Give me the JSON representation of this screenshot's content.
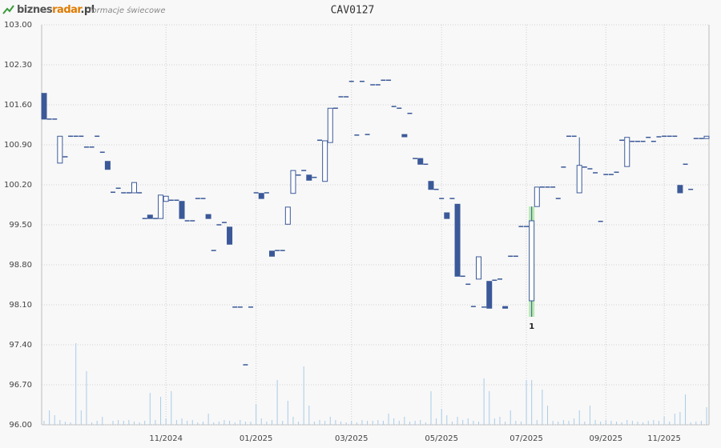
{
  "header": {
    "logo_parts": [
      "biznes",
      "radar",
      ".pl"
    ],
    "subtitle": "formacje świecowe"
  },
  "chart_data": {
    "type": "candlestick",
    "title": "CAV0127",
    "categories": [
      null,
      null,
      null,
      null,
      null,
      null,
      null,
      null,
      null,
      null,
      null,
      null,
      null,
      null,
      null,
      null,
      null,
      null,
      null,
      null,
      null,
      null,
      null,
      "11/2024",
      null,
      null,
      null,
      null,
      null,
      null,
      null,
      null,
      null,
      null,
      null,
      null,
      null,
      null,
      null,
      null,
      "01/2025",
      null,
      null,
      null,
      null,
      null,
      null,
      null,
      null,
      null,
      null,
      null,
      null,
      null,
      null,
      null,
      null,
      null,
      "03/2025",
      null,
      null,
      null,
      null,
      null,
      null,
      null,
      null,
      null,
      null,
      null,
      null,
      null,
      null,
      null,
      null,
      "05/2025",
      null,
      null,
      null,
      null,
      null,
      null,
      null,
      null,
      null,
      null,
      null,
      null,
      null,
      null,
      null,
      "07/2025",
      null,
      null,
      null,
      null,
      null,
      null,
      null,
      null,
      null,
      null,
      null,
      null,
      null,
      null,
      "09/2025",
      null,
      null,
      null,
      null,
      null,
      null,
      null,
      null,
      null,
      null,
      "11/2025",
      null,
      null,
      null,
      null,
      null,
      null,
      null,
      null
    ],
    "open": [
      101.8,
      101.35,
      101.35,
      100.58,
      100.69,
      101.05,
      101.05,
      101.05,
      100.86,
      100.86,
      101.05,
      100.77,
      100.61,
      100.07,
      100.14,
      100.06,
      100.06,
      100.06,
      100.06,
      99.61,
      99.67,
      99.61,
      99.61,
      99.91,
      99.93,
      99.93,
      99.91,
      99.57,
      99.57,
      99.96,
      99.96,
      99.68,
      99.05,
      99.5,
      99.54,
      99.46,
      98.06,
      98.06,
      97.05,
      98.06,
      100.06,
      100.05,
      100.06,
      99.04,
      99.05,
      99.05,
      99.51,
      100.05,
      100.37,
      100.45,
      100.37,
      100.33,
      100.98,
      100.26,
      100.94,
      101.54,
      101.74,
      101.74,
      102.01,
      101.07,
      102.01,
      101.08,
      101.95,
      101.95,
      102.03,
      102.03,
      101.57,
      101.54,
      101.08,
      101.45,
      100.66,
      100.66,
      100.56,
      100.26,
      100.12,
      99.96,
      99.71,
      99.96,
      99.86,
      98.6,
      98.46,
      98.07,
      98.55,
      98.06,
      98.51,
      98.53,
      98.55,
      98.07,
      98.95,
      98.95,
      99.47,
      99.47,
      98.17,
      99.82,
      100.16,
      100.16,
      100.16,
      99.96,
      100.51,
      101.05,
      101.05,
      100.06,
      100.51,
      100.48,
      100.41,
      99.56,
      100.38,
      100.38,
      100.42,
      100.98,
      100.52,
      100.96,
      100.96,
      100.96,
      101.03,
      100.96,
      101.04,
      101.05,
      101.05,
      101.05,
      100.19,
      100.56,
      100.12,
      101.01,
      101.01,
      101.01
    ],
    "high": [
      101.8,
      101.35,
      101.35,
      101.05,
      100.69,
      101.05,
      101.05,
      101.05,
      100.86,
      100.86,
      101.05,
      100.77,
      100.61,
      100.07,
      100.14,
      100.06,
      100.06,
      100.24,
      100.06,
      99.61,
      99.67,
      99.61,
      100.02,
      100.0,
      99.93,
      99.93,
      99.91,
      99.57,
      99.57,
      99.96,
      99.96,
      99.68,
      99.05,
      99.5,
      99.54,
      99.46,
      98.06,
      98.06,
      97.05,
      98.06,
      100.06,
      100.05,
      100.06,
      99.04,
      99.05,
      99.05,
      99.81,
      100.45,
      100.37,
      100.45,
      100.37,
      100.33,
      100.98,
      100.97,
      101.54,
      101.54,
      101.74,
      101.74,
      102.01,
      101.07,
      102.01,
      101.08,
      101.95,
      101.95,
      102.03,
      102.03,
      101.57,
      101.54,
      101.08,
      101.45,
      100.66,
      100.66,
      100.56,
      100.26,
      100.12,
      99.96,
      99.71,
      99.96,
      99.86,
      98.6,
      98.46,
      98.07,
      98.94,
      98.06,
      98.51,
      98.53,
      98.55,
      98.07,
      98.95,
      98.95,
      99.47,
      99.47,
      99.82,
      100.16,
      100.16,
      100.16,
      100.16,
      99.96,
      100.51,
      101.05,
      101.05,
      101.03,
      100.51,
      100.48,
      100.41,
      99.56,
      100.38,
      100.38,
      100.42,
      100.98,
      101.03,
      100.96,
      100.96,
      100.96,
      101.03,
      100.96,
      101.04,
      101.05,
      101.05,
      101.05,
      100.19,
      100.56,
      100.12,
      101.01,
      101.01,
      101.05
    ],
    "low": [
      101.35,
      101.35,
      101.35,
      100.58,
      100.69,
      101.05,
      101.05,
      101.05,
      100.86,
      100.86,
      101.05,
      100.77,
      100.47,
      100.07,
      100.14,
      100.06,
      100.06,
      100.06,
      100.06,
      99.61,
      99.61,
      99.61,
      99.61,
      99.91,
      99.93,
      99.93,
      99.61,
      99.57,
      99.57,
      99.96,
      99.96,
      99.61,
      99.05,
      99.5,
      99.54,
      99.16,
      98.06,
      98.06,
      97.05,
      98.06,
      100.06,
      99.96,
      100.06,
      98.95,
      99.05,
      99.05,
      99.51,
      100.05,
      100.37,
      100.45,
      100.28,
      100.33,
      100.98,
      100.26,
      100.94,
      101.54,
      101.74,
      101.74,
      102.01,
      101.07,
      102.01,
      101.08,
      101.95,
      101.95,
      102.03,
      102.03,
      101.57,
      101.54,
      101.04,
      101.45,
      100.66,
      100.56,
      100.56,
      100.12,
      100.12,
      99.96,
      99.61,
      99.96,
      98.6,
      98.6,
      98.46,
      98.07,
      98.55,
      98.06,
      98.04,
      98.53,
      98.55,
      98.04,
      98.95,
      98.95,
      99.47,
      99.47,
      97.89,
      99.82,
      100.16,
      100.16,
      100.16,
      99.96,
      100.51,
      101.05,
      101.05,
      100.06,
      100.51,
      100.48,
      100.41,
      99.56,
      100.38,
      100.38,
      100.42,
      100.98,
      100.52,
      100.96,
      100.96,
      100.96,
      101.03,
      100.96,
      101.04,
      101.05,
      101.05,
      101.05,
      100.06,
      100.56,
      100.12,
      101.01,
      101.01,
      101.01
    ],
    "close": [
      101.35,
      101.35,
      101.35,
      101.05,
      100.69,
      101.05,
      101.05,
      101.05,
      100.86,
      100.86,
      101.05,
      100.77,
      100.47,
      100.07,
      100.14,
      100.06,
      100.06,
      100.24,
      100.06,
      99.61,
      99.61,
      99.61,
      100.02,
      100.0,
      99.93,
      99.93,
      99.61,
      99.57,
      99.57,
      99.96,
      99.96,
      99.61,
      99.05,
      99.5,
      99.54,
      99.16,
      98.06,
      98.06,
      97.05,
      98.06,
      100.06,
      99.96,
      100.06,
      98.95,
      99.05,
      99.05,
      99.81,
      100.45,
      100.37,
      100.45,
      100.28,
      100.33,
      100.98,
      100.97,
      101.54,
      101.54,
      101.74,
      101.74,
      102.01,
      101.07,
      102.01,
      101.08,
      101.95,
      101.95,
      102.03,
      102.03,
      101.57,
      101.54,
      101.04,
      101.45,
      100.66,
      100.56,
      100.56,
      100.12,
      100.12,
      99.96,
      99.61,
      99.96,
      98.6,
      98.6,
      98.46,
      98.07,
      98.94,
      98.06,
      98.04,
      98.53,
      98.55,
      98.04,
      98.95,
      98.95,
      99.47,
      99.47,
      99.57,
      100.16,
      100.16,
      100.16,
      100.16,
      99.96,
      100.51,
      101.05,
      101.05,
      100.54,
      100.51,
      100.48,
      100.41,
      99.56,
      100.38,
      100.38,
      100.42,
      100.98,
      101.03,
      100.96,
      100.96,
      100.96,
      101.03,
      100.96,
      101.04,
      101.05,
      101.05,
      101.05,
      100.06,
      100.56,
      100.12,
      101.01,
      101.01,
      101.05
    ],
    "volume": [
      5,
      18,
      12,
      6,
      4,
      3,
      102,
      18,
      67,
      3,
      5,
      10,
      0,
      5,
      6,
      5,
      6,
      4,
      3,
      5,
      40,
      6,
      35,
      8,
      42,
      6,
      8,
      5,
      6,
      3,
      4,
      14,
      3,
      4,
      6,
      5,
      3,
      6,
      4,
      4,
      26,
      8,
      4,
      6,
      56,
      5,
      30,
      10,
      4,
      73,
      24,
      4,
      6,
      5,
      10,
      6,
      4,
      3,
      5,
      3,
      6,
      5,
      5,
      6,
      5,
      14,
      8,
      5,
      10,
      4,
      5,
      6,
      3,
      42,
      8,
      20,
      12,
      4,
      10,
      6,
      8,
      5,
      4,
      58,
      42,
      8,
      10,
      4,
      18,
      5,
      4,
      56,
      56,
      6,
      44,
      24,
      5,
      4,
      6,
      5,
      8,
      18,
      4,
      24,
      6,
      4,
      6,
      5,
      4,
      3,
      6,
      5,
      4,
      3,
      5,
      6,
      5,
      10,
      4,
      14,
      16,
      38,
      3,
      4,
      5,
      22
    ],
    "ylim": [
      96,
      103
    ],
    "yticks": [
      {
        "value": 96,
        "label": "96.00"
      },
      {
        "value": 96.7,
        "label": "96.70"
      },
      {
        "value": 97.4,
        "label": "97.40"
      },
      {
        "value": 98.1,
        "label": "98.10"
      },
      {
        "value": 98.8,
        "label": "98.80"
      },
      {
        "value": 99.5,
        "label": "99.50"
      },
      {
        "value": 100.2,
        "label": "100.20"
      },
      {
        "value": 100.9,
        "label": "100.90"
      },
      {
        "value": 101.6,
        "label": "101.60"
      },
      {
        "value": 102.3,
        "label": "102.30"
      },
      {
        "value": 103,
        "label": "103.00"
      }
    ],
    "grid": true,
    "up_color": "#ffffff",
    "down_color": "#3b5998",
    "volume_color": "#a8cbe8",
    "highlight_color": "#b8eab0",
    "annotations": [
      {
        "label": "1",
        "category_index": 92
      }
    ]
  }
}
